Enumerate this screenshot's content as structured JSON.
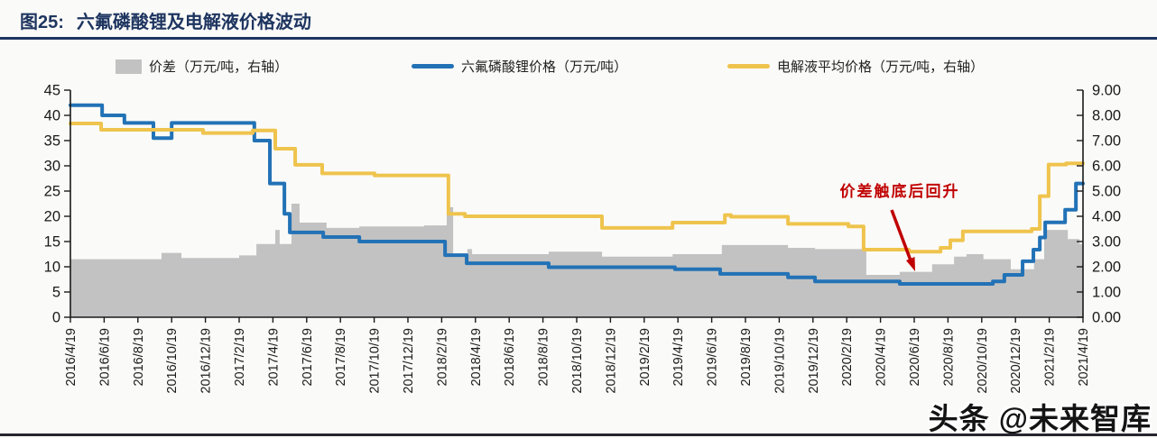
{
  "header": {
    "figure_label": "图25:",
    "title": "六氟磷酸锂及电解液价格波动"
  },
  "legend": {
    "items": [
      {
        "label": "价差（万元/吨，右轴）",
        "swatch": "area",
        "color": "#c2c2c2"
      },
      {
        "label": "六氟磷酸锂价格（万元/吨）",
        "swatch": "line",
        "color": "#2272b6"
      },
      {
        "label": "电解液平均价格（万元/吨，右轴）",
        "swatch": "line",
        "color": "#efc44d"
      }
    ]
  },
  "annotation": {
    "text": "价差触底后回升",
    "color": "#c00000"
  },
  "watermark": {
    "text": "头条 @未来智库"
  },
  "chart_data": {
    "type": "line",
    "subtype": "step-line and step-area combo, dual y-axes",
    "title": "六氟磷酸锂及电解液价格波动",
    "x_axis": {
      "note": "series x values are fractional indexes into labels (0 = 2016/4/19, 30 = 2021/4/19)",
      "labels": [
        "2016/4/19",
        "2016/6/19",
        "2016/8/19",
        "2016/10/19",
        "2016/12/19",
        "2017/2/19",
        "2017/4/19",
        "2017/6/19",
        "2017/8/19",
        "2017/10/19",
        "2017/12/19",
        "2018/2/19",
        "2018/4/19",
        "2018/6/19",
        "2018/8/19",
        "2018/10/19",
        "2018/12/19",
        "2019/2/19",
        "2019/4/19",
        "2019/6/19",
        "2019/8/19",
        "2019/10/19",
        "2019/12/19",
        "2020/2/19",
        "2020/4/19",
        "2020/6/19",
        "2020/8/19",
        "2020/10/19",
        "2020/12/19",
        "2021/2/19",
        "2021/4/19"
      ]
    },
    "left_axis": {
      "ticks": [
        0,
        5,
        10,
        15,
        20,
        25,
        30,
        35,
        40,
        45
      ],
      "range": [
        0,
        45
      ]
    },
    "right_axis": {
      "ticks": [
        "0.00",
        "1.00",
        "2.00",
        "3.00",
        "4.00",
        "5.00",
        "6.00",
        "7.00",
        "8.00",
        "9.00"
      ],
      "range": [
        0,
        9
      ]
    },
    "grid": "off",
    "legend_position": "top",
    "series": [
      {
        "name": "价差（万元/吨，右轴）",
        "axis": "right",
        "type": "area",
        "color": "#c2c2c2",
        "points": [
          [
            0,
            2.3
          ],
          [
            2.7,
            2.55
          ],
          [
            3.29,
            2.35
          ],
          [
            5.0,
            2.45
          ],
          [
            5.51,
            2.9
          ],
          [
            6.07,
            3.46
          ],
          [
            6.2,
            2.9
          ],
          [
            6.55,
            4.5
          ],
          [
            6.79,
            3.75
          ],
          [
            7.59,
            3.54
          ],
          [
            8.56,
            3.6
          ],
          [
            10.48,
            3.64
          ],
          [
            11.15,
            4.36
          ],
          [
            11.34,
            2.5
          ],
          [
            11.76,
            2.7
          ],
          [
            11.9,
            2.5
          ],
          [
            14.17,
            2.6
          ],
          [
            15.75,
            2.4
          ],
          [
            17.84,
            2.5
          ],
          [
            19.3,
            2.86
          ],
          [
            21.26,
            2.75
          ],
          [
            22.06,
            2.7
          ],
          [
            23.58,
            1.68
          ],
          [
            24.57,
            1.8
          ],
          [
            25.53,
            2.1
          ],
          [
            26.18,
            2.4
          ],
          [
            26.55,
            2.5
          ],
          [
            27.05,
            2.3
          ],
          [
            27.86,
            1.9
          ],
          [
            28.55,
            2.3
          ],
          [
            28.85,
            3.46
          ],
          [
            29.55,
            3.1
          ],
          [
            29.9,
            2.9
          ]
        ]
      },
      {
        "name": "六氟磷酸锂价格（万元/吨）",
        "axis": "left",
        "type": "line",
        "color": "#2272b6",
        "points": [
          [
            0,
            42
          ],
          [
            0.94,
            40
          ],
          [
            1.6,
            38.5
          ],
          [
            2.46,
            35.5
          ],
          [
            3.0,
            38.5
          ],
          [
            5.45,
            35
          ],
          [
            5.91,
            26.5
          ],
          [
            6.34,
            20.5
          ],
          [
            6.5,
            16.8
          ],
          [
            7.49,
            15.9
          ],
          [
            8.56,
            15.0
          ],
          [
            11.1,
            12.3
          ],
          [
            11.74,
            10.7
          ],
          [
            14.17,
            9.9
          ],
          [
            17.91,
            9.5
          ],
          [
            19.25,
            8.6
          ],
          [
            21.26,
            7.9
          ],
          [
            22.06,
            7.1
          ],
          [
            24.57,
            6.6
          ],
          [
            27.33,
            7.1
          ],
          [
            27.67,
            8.4
          ],
          [
            28.21,
            11.1
          ],
          [
            28.53,
            13.4
          ],
          [
            28.72,
            15.8
          ],
          [
            28.88,
            18.8
          ],
          [
            29.47,
            21.3
          ],
          [
            29.79,
            26.5
          ]
        ]
      },
      {
        "name": "电解液平均价格（万元/吨，右轴）",
        "axis": "right",
        "type": "line",
        "color": "#efc44d",
        "points": [
          [
            0,
            7.68
          ],
          [
            0.91,
            7.43
          ],
          [
            3.93,
            7.3
          ],
          [
            5.4,
            7.4
          ],
          [
            6.07,
            6.68
          ],
          [
            6.66,
            6.04
          ],
          [
            7.46,
            5.7
          ],
          [
            9.01,
            5.62
          ],
          [
            11.2,
            4.1
          ],
          [
            11.69,
            4.0
          ],
          [
            15.75,
            3.54
          ],
          [
            17.84,
            3.75
          ],
          [
            19.39,
            4.05
          ],
          [
            19.57,
            3.98
          ],
          [
            21.26,
            3.7
          ],
          [
            23.05,
            3.6
          ],
          [
            23.5,
            2.68
          ],
          [
            24.84,
            2.6
          ],
          [
            25.78,
            2.75
          ],
          [
            26.07,
            3.05
          ],
          [
            26.44,
            3.4
          ],
          [
            28.48,
            3.5
          ],
          [
            28.72,
            4.8
          ],
          [
            28.98,
            6.05
          ],
          [
            29.5,
            6.1
          ]
        ]
      }
    ]
  }
}
